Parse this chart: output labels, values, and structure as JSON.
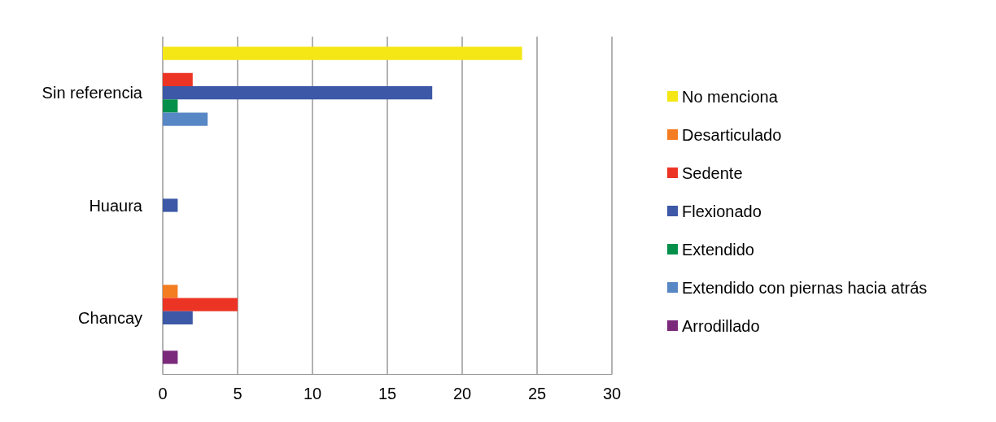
{
  "chart_data": {
    "type": "bar",
    "orientation": "horizontal",
    "categories": [
      "Sin referencia",
      "Huaura",
      "Chancay"
    ],
    "series": [
      {
        "name": "No menciona",
        "color": "#f5e616",
        "values": [
          24,
          null,
          null
        ]
      },
      {
        "name": "Desarticulado",
        "color": "#f47d22",
        "values": [
          null,
          null,
          1
        ]
      },
      {
        "name": "Sedente",
        "color": "#ec3425",
        "values": [
          2,
          null,
          5
        ]
      },
      {
        "name": "Flexionado",
        "color": "#3c58a6",
        "values": [
          18,
          1,
          2
        ]
      },
      {
        "name": "Extendido",
        "color": "#04904a",
        "values": [
          1,
          null,
          null
        ]
      },
      {
        "name": "Extendido con piernas hacia atrás",
        "color": "#5887c5",
        "values": [
          3,
          null,
          null
        ]
      },
      {
        "name": "Arrodillado",
        "color": "#7b2a7b",
        "values": [
          null,
          null,
          1
        ]
      }
    ],
    "xlim": [
      0,
      30
    ],
    "xticks": [
      0,
      5,
      10,
      15,
      20,
      25,
      30
    ],
    "grid": "x",
    "legend": "right"
  }
}
